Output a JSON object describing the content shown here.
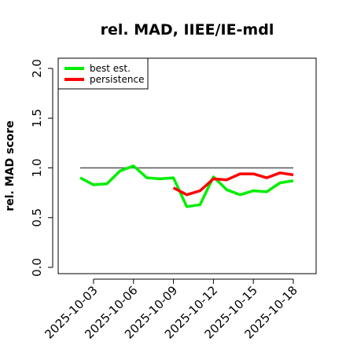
{
  "chart_data": {
    "type": "line",
    "title": "rel. MAD, IIEE/IE-mdl",
    "xlabel": "",
    "ylabel": "rel. MAD score",
    "ylim": [
      0.0,
      2.0
    ],
    "yticks": [
      "0.0",
      "0.5",
      "1.0",
      "1.5",
      "2.0"
    ],
    "xticks": [
      "2025-10-03",
      "2025-10-06",
      "2025-10-09",
      "2025-10-12",
      "2025-10-15",
      "2025-10-18"
    ],
    "x_dates": [
      "2025-10-02",
      "2025-10-03",
      "2025-10-04",
      "2025-10-05",
      "2025-10-06",
      "2025-10-07",
      "2025-10-08",
      "2025-10-09",
      "2025-10-10",
      "2025-10-11",
      "2025-10-12",
      "2025-10-13",
      "2025-10-14",
      "2025-10-15",
      "2025-10-16",
      "2025-10-17",
      "2025-10-18"
    ],
    "series": [
      {
        "name": "best est.",
        "color": "#00ee00",
        "values": [
          0.9,
          0.83,
          0.84,
          0.97,
          1.02,
          0.9,
          0.89,
          0.9,
          0.61,
          0.63,
          0.91,
          0.78,
          0.73,
          0.77,
          0.76,
          0.85,
          0.87
        ]
      },
      {
        "name": "persistence",
        "color": "#ff0000",
        "values": [
          null,
          null,
          null,
          null,
          null,
          null,
          null,
          0.8,
          0.73,
          0.77,
          0.89,
          0.88,
          0.94,
          0.94,
          0.9,
          0.95,
          0.93
        ]
      }
    ],
    "reference_line": {
      "y": 1.0,
      "color": "#555555"
    },
    "legend_position": "top-left",
    "grid": false
  }
}
